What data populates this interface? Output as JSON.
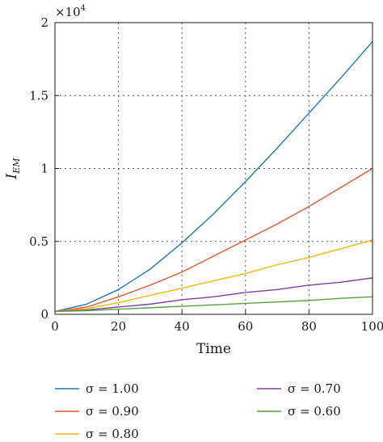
{
  "chart_data": {
    "type": "line",
    "xlabel": "Time",
    "ylabel_main": "I",
    "ylabel_sub": "EM",
    "multiplier_base": "×10",
    "multiplier_exp": "4",
    "xlim": [
      0,
      100
    ],
    "ylim": [
      0,
      2
    ],
    "xticks": [
      0,
      20,
      40,
      60,
      80,
      100
    ],
    "xtick_labels": [
      "0",
      "20",
      "40",
      "60",
      "80",
      "100"
    ],
    "yticks": [
      0,
      0.5,
      1,
      1.5,
      2
    ],
    "ytick_labels": [
      "0",
      "0.5",
      "1",
      "1.5",
      "2"
    ],
    "grid": "dotted",
    "legend_position": "bottom",
    "x": [
      0,
      10,
      20,
      30,
      40,
      50,
      60,
      70,
      80,
      90,
      100
    ],
    "series": [
      {
        "name": "σ = 1.00",
        "color": "#1f77b4",
        "values": [
          0.02,
          0.07,
          0.17,
          0.31,
          0.49,
          0.69,
          0.91,
          1.14,
          1.38,
          1.62,
          1.87
        ]
      },
      {
        "name": "σ = 0.90",
        "color": "#e4572e",
        "values": [
          0.02,
          0.05,
          0.12,
          0.2,
          0.29,
          0.4,
          0.51,
          0.62,
          0.74,
          0.87,
          1.0
        ]
      },
      {
        "name": "σ = 0.80",
        "color": "#f2b705",
        "values": [
          0.02,
          0.04,
          0.08,
          0.13,
          0.18,
          0.23,
          0.28,
          0.34,
          0.39,
          0.45,
          0.51
        ]
      },
      {
        "name": "σ = 0.70",
        "color": "#7e3f98",
        "values": [
          0.02,
          0.03,
          0.05,
          0.07,
          0.1,
          0.12,
          0.15,
          0.17,
          0.2,
          0.22,
          0.25
        ]
      },
      {
        "name": "σ = 0.60",
        "color": "#5aa13f",
        "values": [
          0.02,
          0.025,
          0.035,
          0.045,
          0.055,
          0.065,
          0.075,
          0.085,
          0.095,
          0.11,
          0.12
        ]
      }
    ]
  }
}
